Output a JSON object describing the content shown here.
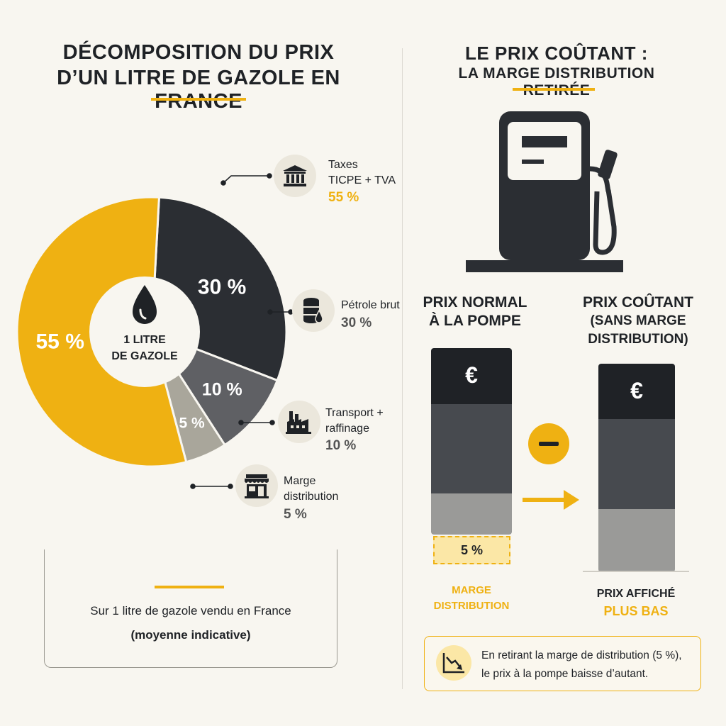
{
  "left": {
    "title_line1": "DÉCOMPOSITION DU PRIX",
    "title_line2": "D’UN LITRE DE GAZOLE EN FRANCE",
    "center_line1": "1 LITRE",
    "center_line2": "DE GAZOLE",
    "legend": [
      {
        "line1": "Taxes",
        "line2": "TICPE + TVA",
        "pct": "55 %",
        "icon": "bank-building-icon"
      },
      {
        "line1": "Pétrole brut",
        "line2": "",
        "pct": "30 %",
        "icon": "oil-barrel-icon"
      },
      {
        "line1": "Transport +",
        "line2": "raffinage",
        "pct": "10 %",
        "icon": "factory-icon"
      },
      {
        "line1": "Marge",
        "line2": "distribution",
        "pct": "5 %",
        "icon": "storefront-icon"
      }
    ],
    "note_line1": "Sur 1 litre de gazole vendu en France",
    "note_line2": "(moyenne indicative)"
  },
  "right": {
    "title_line1": "LE PRIX COÛTANT :",
    "title_line2": "LA MARGE DISTRIBUTION RETIRÉE",
    "bar1_label_line1": "PRIX NORMAL",
    "bar1_label_line2": "À LA POMPE",
    "bar2_label_line1": "PRIX COÛTANT",
    "bar2_label_line2": "(SANS MARGE",
    "bar2_label_line3": "DISTRIBUTION)",
    "euro_symbol": "€",
    "marge_box_label": "5 %",
    "marge_caption_line1": "MARGE",
    "marge_caption_line2": "DISTRIBUTION",
    "prix_caption_line1": "PRIX AFFICHÉ",
    "prix_caption_line2": "PLUS BAS",
    "info_line1": "En retirant la marge de distribution (5 %),",
    "info_line2": "le prix à la pompe baisse d’autant."
  },
  "chart_data": {
    "type": "pie",
    "categories": [
      "Taxes (TICPE + TVA)",
      "Pétrole brut",
      "Transport + raffinage",
      "Marge distribution"
    ],
    "values": [
      55,
      30,
      10,
      5
    ],
    "labels": [
      "55 %",
      "30 %",
      "10 %",
      "5 %"
    ],
    "colors": [
      "#efb112",
      "#2b2e33",
      "#5f6064",
      "#a9a69b"
    ]
  },
  "colors": {
    "accent": "#efb112",
    "dark": "#2b2e33",
    "mid": "#5f6064",
    "light": "#a9a69b",
    "background": "#f8f6f0"
  }
}
